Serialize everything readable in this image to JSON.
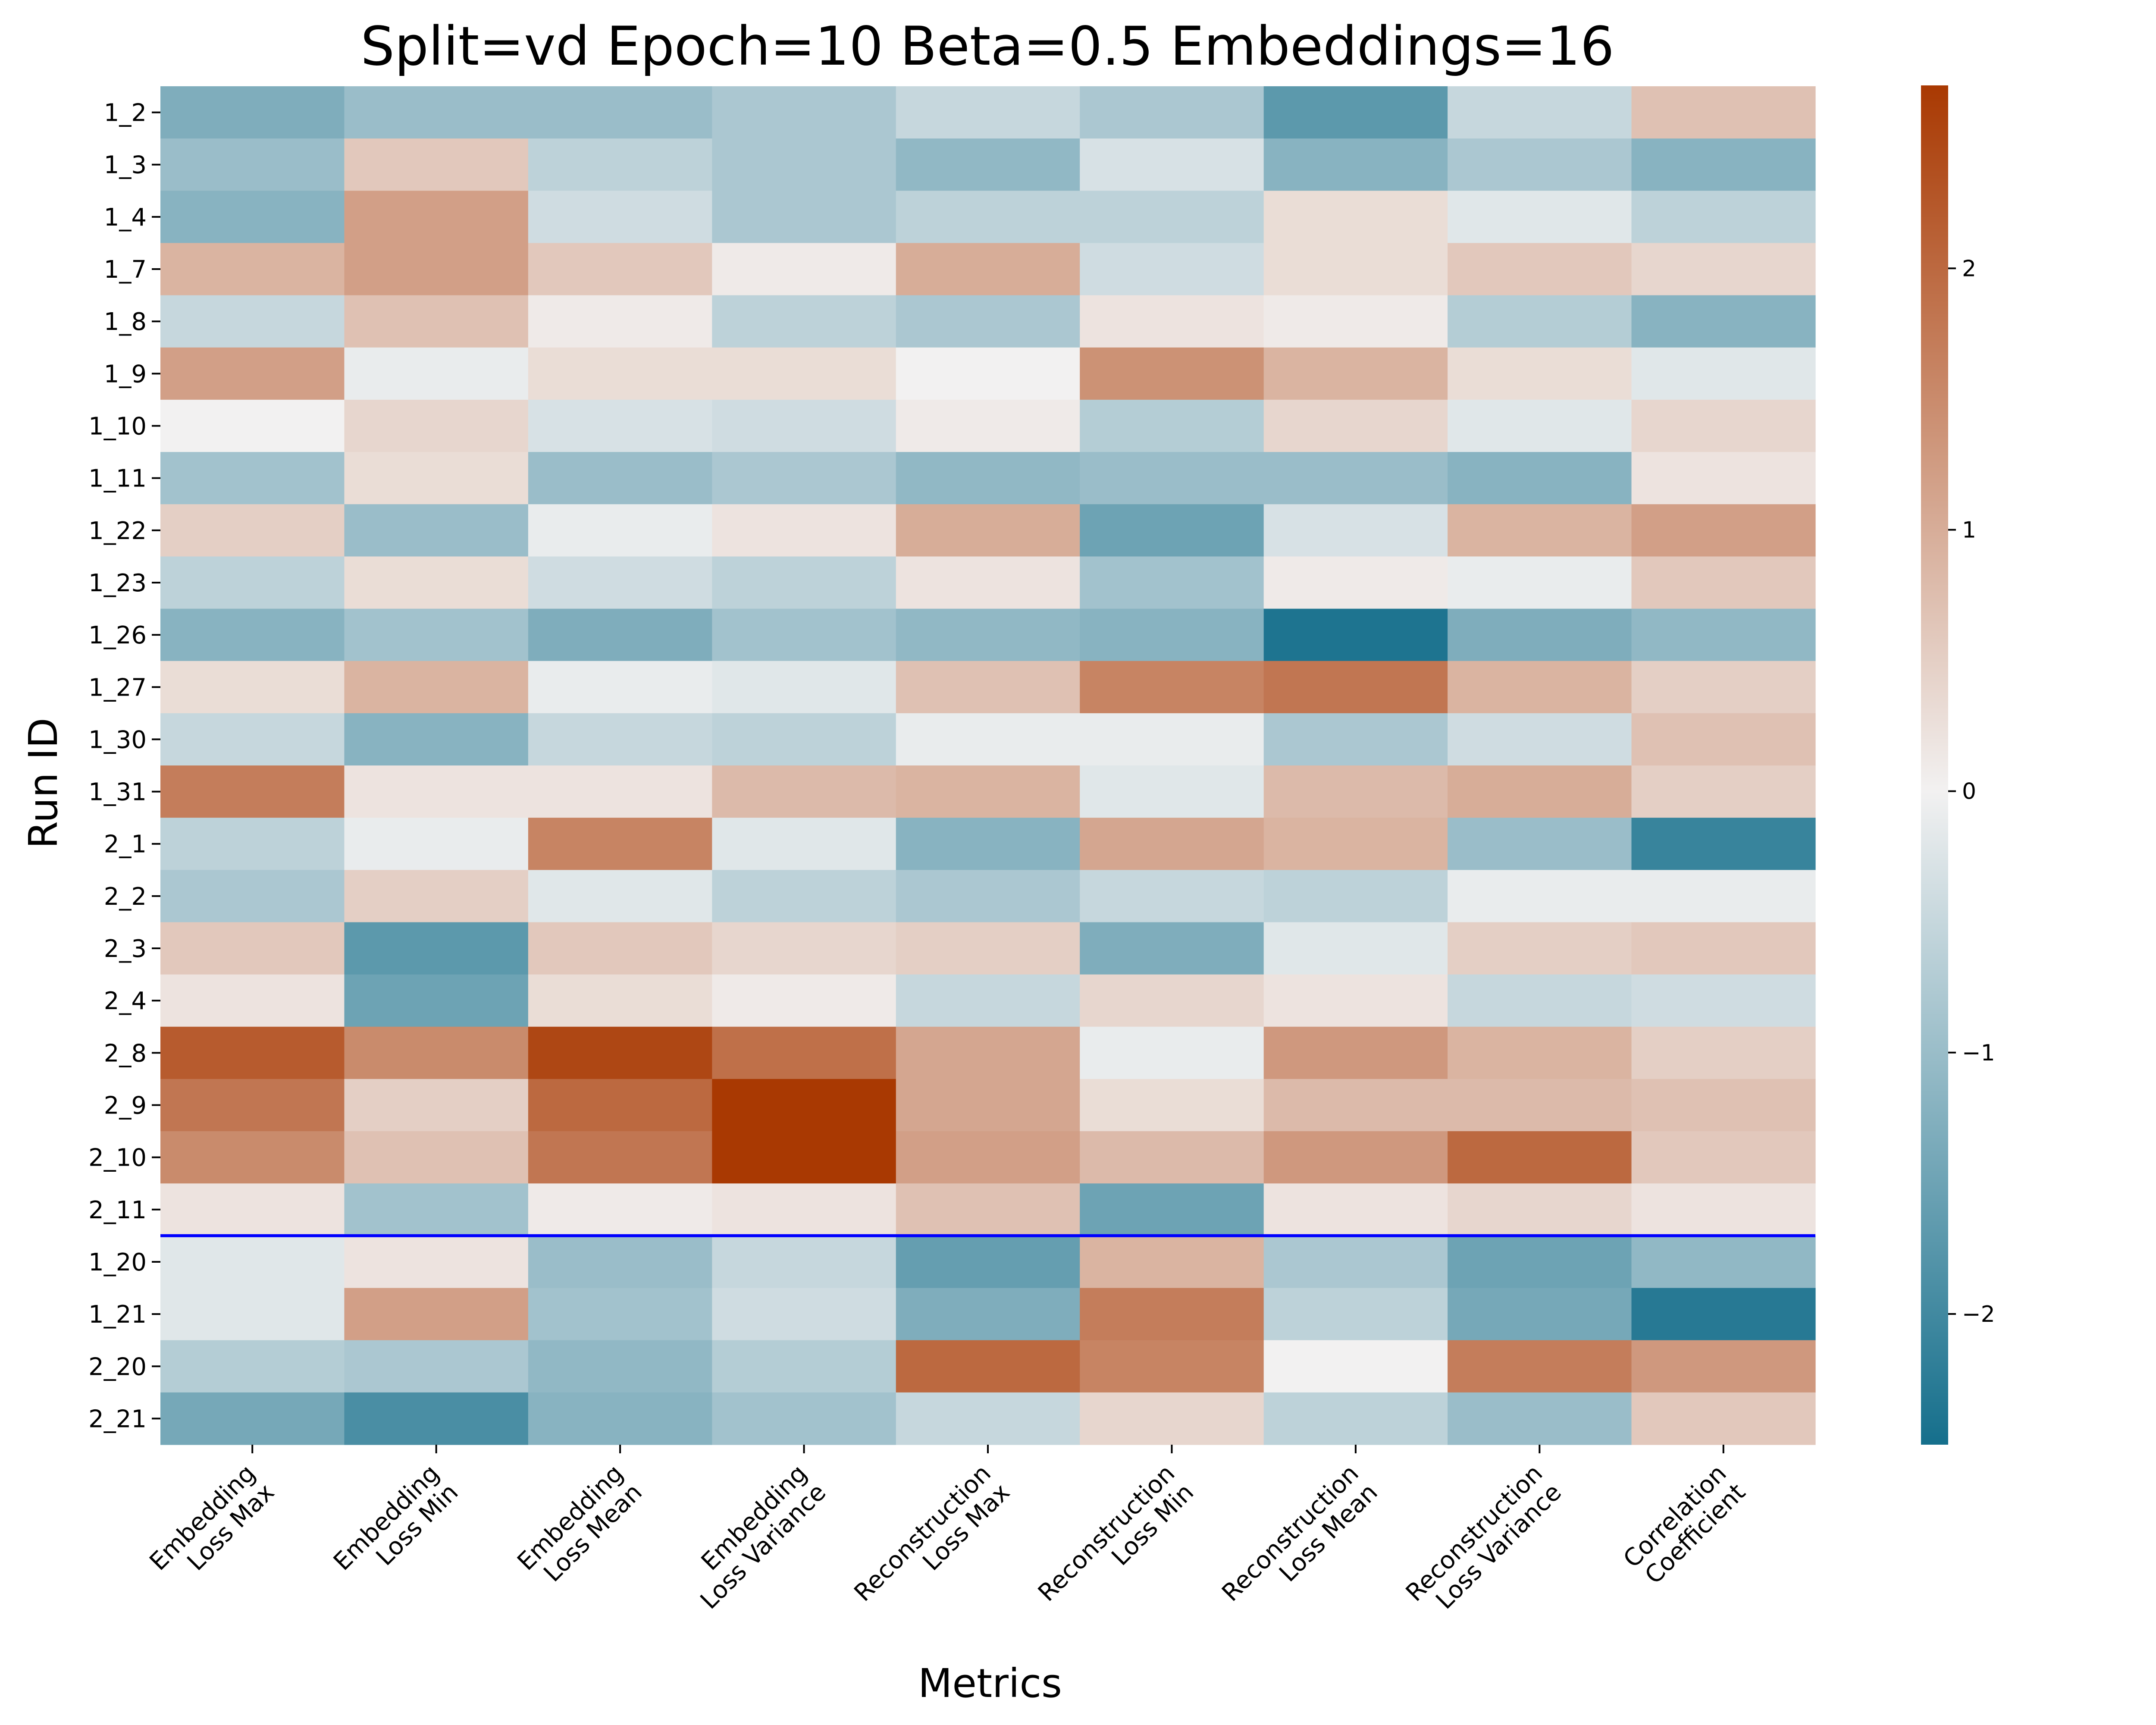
{
  "chart_data": {
    "type": "heatmap",
    "title": "Split=vd Epoch=10 Beta=0.5 Embeddings=16",
    "xlabel": "Metrics",
    "ylabel": "Run ID",
    "columns": [
      [
        "Embedding",
        "Loss Max"
      ],
      [
        "Embedding",
        "Loss Min"
      ],
      [
        "Embedding",
        "Loss Mean"
      ],
      [
        "Embedding",
        "Loss Variance"
      ],
      [
        "Reconstruction",
        "Loss Max"
      ],
      [
        "Reconstruction",
        "Loss Min"
      ],
      [
        "Reconstruction",
        "Loss Mean"
      ],
      [
        "Reconstruction",
        "Loss Variance"
      ],
      [
        "Correlation",
        "Coefficient"
      ]
    ],
    "rows": [
      "1_2",
      "1_3",
      "1_4",
      "1_7",
      "1_8",
      "1_9",
      "1_10",
      "1_11",
      "1_22",
      "1_23",
      "1_26",
      "1_27",
      "1_30",
      "1_31",
      "2_1",
      "2_2",
      "2_3",
      "2_4",
      "2_8",
      "2_9",
      "2_10",
      "2_11",
      "1_20",
      "1_21",
      "2_20",
      "2_21"
    ],
    "values": [
      [
        -1.3,
        -1.0,
        -1.0,
        -0.8,
        -0.5,
        -0.8,
        -1.7,
        -0.5,
        0.7
      ],
      [
        -1.0,
        0.6,
        -0.6,
        -0.8,
        -1.1,
        -0.3,
        -1.2,
        -0.8,
        -1.2
      ],
      [
        -1.2,
        1.2,
        -0.4,
        -0.8,
        -0.6,
        -0.6,
        0.3,
        -0.2,
        -0.6
      ],
      [
        0.9,
        1.2,
        0.6,
        0.1,
        1.0,
        -0.4,
        0.3,
        0.6,
        0.4
      ],
      [
        -0.5,
        0.7,
        0.1,
        -0.6,
        -0.8,
        0.2,
        0.1,
        -0.7,
        -1.2
      ],
      [
        1.2,
        -0.1,
        0.3,
        0.3,
        0.0,
        1.4,
        0.9,
        0.3,
        -0.2
      ],
      [
        0.0,
        0.4,
        -0.3,
        -0.4,
        0.1,
        -0.7,
        0.4,
        -0.2,
        0.4
      ],
      [
        -0.9,
        0.3,
        -1.0,
        -0.8,
        -1.1,
        -1.0,
        -1.0,
        -1.2,
        0.2
      ],
      [
        0.5,
        -1.0,
        -0.1,
        0.2,
        1.0,
        -1.5,
        -0.3,
        0.9,
        1.2
      ],
      [
        -0.6,
        0.3,
        -0.4,
        -0.6,
        0.2,
        -0.9,
        0.1,
        -0.1,
        0.6
      ],
      [
        -1.2,
        -0.9,
        -1.3,
        -0.9,
        -1.1,
        -1.2,
        -2.4,
        -1.3,
        -1.1
      ],
      [
        0.3,
        0.9,
        -0.1,
        -0.2,
        0.7,
        1.6,
        1.8,
        0.9,
        0.5
      ],
      [
        -0.5,
        -1.2,
        -0.5,
        -0.6,
        -0.1,
        -0.1,
        -0.8,
        -0.4,
        0.7
      ],
      [
        1.7,
        0.2,
        0.2,
        0.8,
        0.9,
        -0.2,
        0.8,
        1.0,
        0.5
      ],
      [
        -0.6,
        -0.1,
        1.6,
        -0.2,
        -1.2,
        1.1,
        0.9,
        -1.0,
        -2.1
      ],
      [
        -0.8,
        0.5,
        -0.2,
        -0.6,
        -0.8,
        -0.5,
        -0.6,
        -0.1,
        -0.1
      ],
      [
        0.6,
        -1.7,
        0.6,
        0.4,
        0.5,
        -1.3,
        -0.2,
        0.5,
        0.6
      ],
      [
        0.2,
        -1.5,
        0.3,
        0.1,
        -0.5,
        0.4,
        0.2,
        -0.5,
        -0.4
      ],
      [
        2.2,
        1.5,
        2.5,
        1.9,
        1.1,
        -0.1,
        1.3,
        0.9,
        0.5
      ],
      [
        1.8,
        0.5,
        2.0,
        2.7,
        1.1,
        0.3,
        0.8,
        0.8,
        0.7
      ],
      [
        1.5,
        0.7,
        1.8,
        2.7,
        1.2,
        0.8,
        1.3,
        2.0,
        0.6
      ],
      [
        0.2,
        -0.9,
        0.1,
        0.2,
        0.7,
        -1.5,
        0.2,
        0.4,
        0.2
      ],
      [
        -0.2,
        0.2,
        -1.0,
        -0.5,
        -1.6,
        0.9,
        -0.8,
        -1.5,
        -1.1
      ],
      [
        -0.2,
        1.2,
        -0.9,
        -0.4,
        -1.3,
        1.7,
        -0.6,
        -1.4,
        -2.3
      ],
      [
        -0.7,
        -0.8,
        -1.1,
        -0.7,
        2.0,
        1.6,
        0.0,
        1.7,
        1.3
      ],
      [
        -1.4,
        -1.9,
        -1.2,
        -0.9,
        -0.5,
        0.4,
        -0.6,
        -1.0,
        0.6
      ]
    ],
    "vmin": -2.5,
    "vmax": 2.7,
    "colormap": {
      "negative": "#156f8c",
      "center": "#f2f1f1",
      "positive": "#a93902"
    },
    "colorbar_ticks": [
      -2,
      -1,
      0,
      1,
      2
    ],
    "colorbar_tick_labels": [
      "−2",
      "−1",
      "0",
      "1",
      "2"
    ],
    "separator_line": {
      "after_row": "2_11",
      "color": "#0000ff"
    },
    "grid": false
  }
}
